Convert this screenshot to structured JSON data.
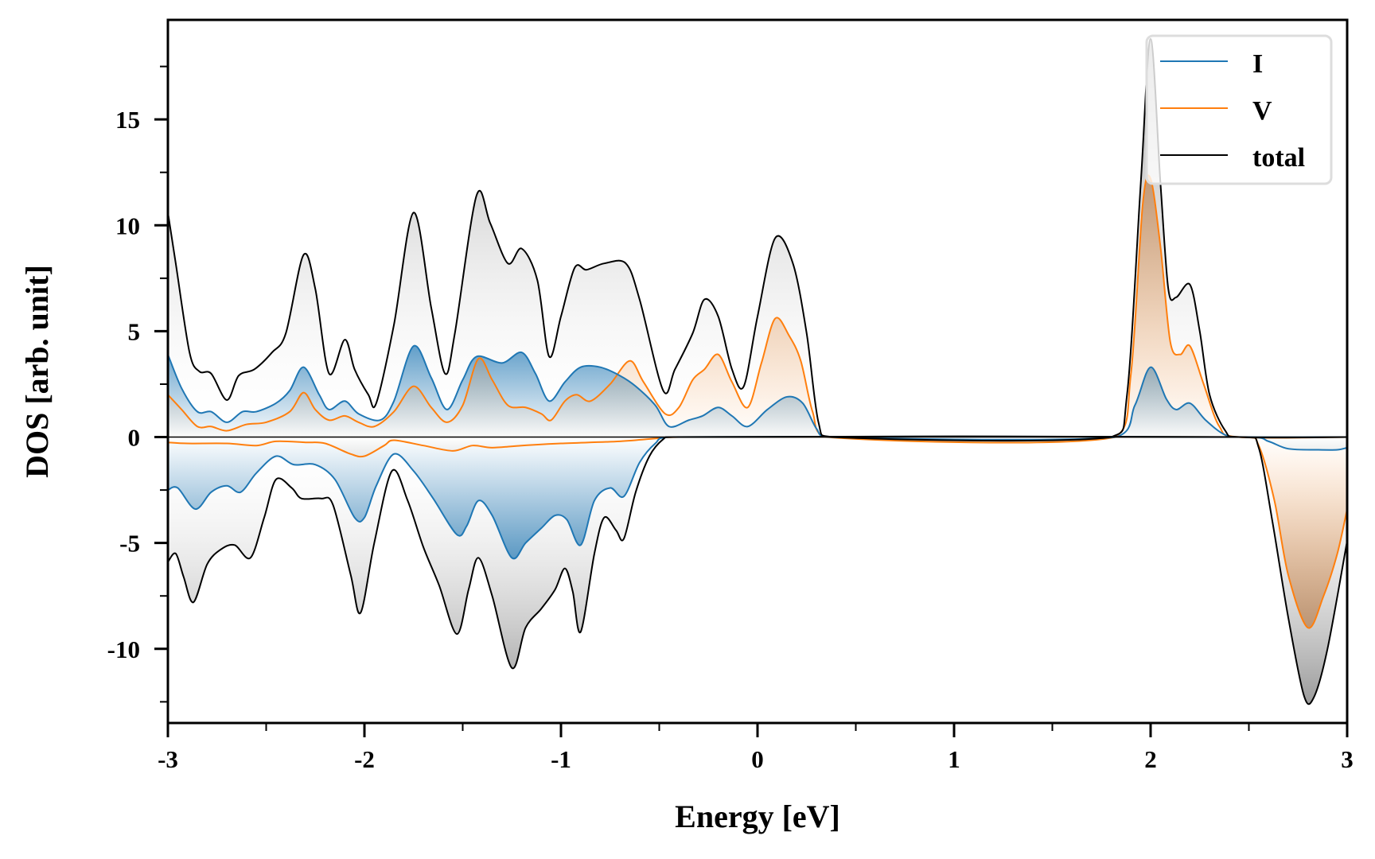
{
  "chart_data": {
    "type": "area",
    "title": "",
    "xlabel": "Energy [eV]",
    "ylabel": "DOS [arb. unit]",
    "xlim": [
      -3,
      3
    ],
    "ylim": [
      -13.5,
      19.7
    ],
    "xticks": [
      -3,
      -2,
      -1,
      0,
      1,
      2,
      3
    ],
    "xtick_labels": [
      "-3",
      "-2",
      "-1",
      "0",
      "1",
      "2",
      "3"
    ],
    "xminor": [
      -2.5,
      -1.5,
      -0.5,
      0.5,
      1.5,
      2.5
    ],
    "yticks": [
      -10,
      -5,
      0,
      5,
      10,
      15
    ],
    "ytick_labels": [
      "-10",
      "-5",
      "0",
      "5",
      "10",
      "15"
    ],
    "yminor": [
      -12.5,
      -7.5,
      -2.5,
      2.5,
      7.5,
      12.5,
      17.5
    ],
    "grid": false,
    "legend": {
      "placement": "top-right",
      "entries": [
        "I",
        "V",
        "total"
      ]
    },
    "colors": {
      "I": "#1f77b4",
      "V": "#ff7f0e",
      "total": "#000000",
      "total_fill": "#888888"
    },
    "series": [
      {
        "name": "total",
        "spin": "up",
        "points": [
          [
            -3.0,
            10.6
          ],
          [
            -2.96,
            8.2
          ],
          [
            -2.89,
            4.0
          ],
          [
            -2.84,
            3.1
          ],
          [
            -2.78,
            3.0
          ],
          [
            -2.7,
            1.75
          ],
          [
            -2.64,
            2.9
          ],
          [
            -2.56,
            3.2
          ],
          [
            -2.47,
            4.0
          ],
          [
            -2.4,
            4.9
          ],
          [
            -2.31,
            8.6
          ],
          [
            -2.25,
            7.0
          ],
          [
            -2.18,
            3.0
          ],
          [
            -2.1,
            4.6
          ],
          [
            -2.05,
            3.2
          ],
          [
            -1.98,
            2.0
          ],
          [
            -1.94,
            1.6
          ],
          [
            -1.85,
            5.3
          ],
          [
            -1.75,
            10.6
          ],
          [
            -1.66,
            6.1
          ],
          [
            -1.59,
            3.0
          ],
          [
            -1.54,
            4.9
          ],
          [
            -1.43,
            11.4
          ],
          [
            -1.36,
            10.1
          ],
          [
            -1.27,
            8.2
          ],
          [
            -1.2,
            8.9
          ],
          [
            -1.12,
            7.4
          ],
          [
            -1.06,
            3.8
          ],
          [
            -1.0,
            5.7
          ],
          [
            -0.93,
            8.0
          ],
          [
            -0.87,
            7.9
          ],
          [
            -0.78,
            8.2
          ],
          [
            -0.67,
            8.2
          ],
          [
            -0.6,
            6.5
          ],
          [
            -0.48,
            2.2
          ],
          [
            -0.42,
            3.2
          ],
          [
            -0.33,
            4.9
          ],
          [
            -0.27,
            6.5
          ],
          [
            -0.2,
            5.7
          ],
          [
            -0.13,
            3.2
          ],
          [
            -0.07,
            2.4
          ],
          [
            0.0,
            5.7
          ],
          [
            0.09,
            9.4
          ],
          [
            0.18,
            8.2
          ],
          [
            0.25,
            4.9
          ],
          [
            0.31,
            0.7
          ],
          [
            0.38,
            0.0
          ],
          [
            1.8,
            0.0
          ],
          [
            1.88,
            2.0
          ],
          [
            1.95,
            12.0
          ],
          [
            2.0,
            18.8
          ],
          [
            2.05,
            12.0
          ],
          [
            2.09,
            7.0
          ],
          [
            2.13,
            6.6
          ],
          [
            2.2,
            7.2
          ],
          [
            2.25,
            5.0
          ],
          [
            2.3,
            2.0
          ],
          [
            2.38,
            0.3
          ],
          [
            2.45,
            0.0
          ],
          [
            3.0,
            0.0
          ]
        ]
      },
      {
        "name": "total",
        "spin": "down",
        "points": [
          [
            -3.0,
            -5.9
          ],
          [
            -2.96,
            -5.5
          ],
          [
            -2.92,
            -6.6
          ],
          [
            -2.87,
            -7.8
          ],
          [
            -2.8,
            -6.0
          ],
          [
            -2.73,
            -5.3
          ],
          [
            -2.66,
            -5.1
          ],
          [
            -2.58,
            -5.7
          ],
          [
            -2.51,
            -3.8
          ],
          [
            -2.45,
            -2.0
          ],
          [
            -2.37,
            -2.4
          ],
          [
            -2.32,
            -2.9
          ],
          [
            -2.22,
            -2.9
          ],
          [
            -2.16,
            -3.2
          ],
          [
            -2.07,
            -6.5
          ],
          [
            -2.02,
            -8.3
          ],
          [
            -1.95,
            -5.0
          ],
          [
            -1.86,
            -1.6
          ],
          [
            -1.78,
            -3.0
          ],
          [
            -1.7,
            -5.2
          ],
          [
            -1.62,
            -7.0
          ],
          [
            -1.53,
            -9.3
          ],
          [
            -1.47,
            -7.2
          ],
          [
            -1.42,
            -5.7
          ],
          [
            -1.35,
            -7.5
          ],
          [
            -1.25,
            -10.9
          ],
          [
            -1.18,
            -9.0
          ],
          [
            -1.1,
            -8.1
          ],
          [
            -1.03,
            -7.2
          ],
          [
            -0.98,
            -6.2
          ],
          [
            -0.94,
            -7.3
          ],
          [
            -0.9,
            -9.2
          ],
          [
            -0.83,
            -5.5
          ],
          [
            -0.78,
            -3.8
          ],
          [
            -0.72,
            -4.4
          ],
          [
            -0.68,
            -4.8
          ],
          [
            -0.62,
            -2.6
          ],
          [
            -0.55,
            -0.9
          ],
          [
            -0.48,
            -0.1
          ],
          [
            -0.43,
            0.0
          ],
          [
            2.48,
            0.0
          ],
          [
            2.55,
            -0.5
          ],
          [
            2.62,
            -4.0
          ],
          [
            2.7,
            -8.5
          ],
          [
            2.78,
            -12.2
          ],
          [
            2.83,
            -12.3
          ],
          [
            2.9,
            -10.0
          ],
          [
            3.0,
            -4.9
          ]
        ]
      },
      {
        "name": "I",
        "spin": "up",
        "points": [
          [
            -3.0,
            3.9
          ],
          [
            -2.93,
            2.3
          ],
          [
            -2.85,
            1.2
          ],
          [
            -2.78,
            1.2
          ],
          [
            -2.7,
            0.7
          ],
          [
            -2.62,
            1.2
          ],
          [
            -2.55,
            1.2
          ],
          [
            -2.45,
            1.6
          ],
          [
            -2.38,
            2.2
          ],
          [
            -2.31,
            3.3
          ],
          [
            -2.23,
            2.0
          ],
          [
            -2.18,
            1.3
          ],
          [
            -2.1,
            1.7
          ],
          [
            -2.03,
            1.1
          ],
          [
            -1.92,
            0.8
          ],
          [
            -1.85,
            1.7
          ],
          [
            -1.75,
            4.3
          ],
          [
            -1.66,
            2.8
          ],
          [
            -1.58,
            1.3
          ],
          [
            -1.5,
            2.7
          ],
          [
            -1.43,
            3.8
          ],
          [
            -1.3,
            3.5
          ],
          [
            -1.2,
            4.0
          ],
          [
            -1.13,
            3.0
          ],
          [
            -1.06,
            1.7
          ],
          [
            -0.98,
            2.6
          ],
          [
            -0.9,
            3.3
          ],
          [
            -0.8,
            3.3
          ],
          [
            -0.7,
            2.9
          ],
          [
            -0.62,
            2.4
          ],
          [
            -0.52,
            1.5
          ],
          [
            -0.45,
            0.5
          ],
          [
            -0.35,
            0.8
          ],
          [
            -0.28,
            1.0
          ],
          [
            -0.2,
            1.4
          ],
          [
            -0.13,
            1.0
          ],
          [
            -0.05,
            0.5
          ],
          [
            0.05,
            1.3
          ],
          [
            0.15,
            1.9
          ],
          [
            0.23,
            1.6
          ],
          [
            0.3,
            0.4
          ],
          [
            0.36,
            0.0
          ],
          [
            1.82,
            0.0
          ],
          [
            1.92,
            1.5
          ],
          [
            2.0,
            3.3
          ],
          [
            2.08,
            1.8
          ],
          [
            2.13,
            1.3
          ],
          [
            2.2,
            1.6
          ],
          [
            2.28,
            0.8
          ],
          [
            2.38,
            0.1
          ],
          [
            2.48,
            0.0
          ],
          [
            3.0,
            0.0
          ]
        ]
      },
      {
        "name": "I",
        "spin": "down",
        "points": [
          [
            -3.0,
            -2.5
          ],
          [
            -2.95,
            -2.4
          ],
          [
            -2.86,
            -3.4
          ],
          [
            -2.78,
            -2.6
          ],
          [
            -2.7,
            -2.3
          ],
          [
            -2.63,
            -2.6
          ],
          [
            -2.55,
            -1.7
          ],
          [
            -2.45,
            -0.9
          ],
          [
            -2.36,
            -1.3
          ],
          [
            -2.25,
            -1.3
          ],
          [
            -2.15,
            -2.0
          ],
          [
            -2.05,
            -3.8
          ],
          [
            -2.0,
            -3.8
          ],
          [
            -1.94,
            -2.3
          ],
          [
            -1.85,
            -0.8
          ],
          [
            -1.75,
            -1.6
          ],
          [
            -1.65,
            -2.9
          ],
          [
            -1.53,
            -4.6
          ],
          [
            -1.48,
            -4.2
          ],
          [
            -1.42,
            -3.0
          ],
          [
            -1.35,
            -3.7
          ],
          [
            -1.25,
            -5.7
          ],
          [
            -1.18,
            -5.0
          ],
          [
            -1.1,
            -4.3
          ],
          [
            -1.03,
            -3.7
          ],
          [
            -0.97,
            -3.9
          ],
          [
            -0.9,
            -5.1
          ],
          [
            -0.83,
            -3.0
          ],
          [
            -0.75,
            -2.4
          ],
          [
            -0.68,
            -2.8
          ],
          [
            -0.6,
            -1.2
          ],
          [
            -0.52,
            -0.3
          ],
          [
            -0.45,
            0.0
          ],
          [
            2.5,
            0.0
          ],
          [
            2.6,
            -0.2
          ],
          [
            2.7,
            -0.55
          ],
          [
            2.85,
            -0.6
          ],
          [
            2.95,
            -0.6
          ],
          [
            3.0,
            -0.5
          ]
        ]
      },
      {
        "name": "V",
        "spin": "up",
        "points": [
          [
            -3.0,
            2.0
          ],
          [
            -2.93,
            1.3
          ],
          [
            -2.85,
            0.5
          ],
          [
            -2.78,
            0.5
          ],
          [
            -2.7,
            0.3
          ],
          [
            -2.6,
            0.6
          ],
          [
            -2.5,
            0.7
          ],
          [
            -2.38,
            1.2
          ],
          [
            -2.31,
            2.1
          ],
          [
            -2.25,
            1.3
          ],
          [
            -2.18,
            0.8
          ],
          [
            -2.1,
            1.0
          ],
          [
            -2.03,
            0.7
          ],
          [
            -1.95,
            0.5
          ],
          [
            -1.85,
            1.2
          ],
          [
            -1.75,
            2.4
          ],
          [
            -1.66,
            1.4
          ],
          [
            -1.58,
            0.7
          ],
          [
            -1.5,
            1.5
          ],
          [
            -1.42,
            3.7
          ],
          [
            -1.35,
            2.7
          ],
          [
            -1.27,
            1.5
          ],
          [
            -1.18,
            1.4
          ],
          [
            -1.1,
            1.1
          ],
          [
            -1.05,
            0.8
          ],
          [
            -0.98,
            1.7
          ],
          [
            -0.92,
            2.0
          ],
          [
            -0.85,
            1.7
          ],
          [
            -0.75,
            2.5
          ],
          [
            -0.65,
            3.6
          ],
          [
            -0.58,
            2.6
          ],
          [
            -0.47,
            1.1
          ],
          [
            -0.4,
            1.4
          ],
          [
            -0.33,
            2.7
          ],
          [
            -0.27,
            3.2
          ],
          [
            -0.2,
            3.9
          ],
          [
            -0.13,
            2.6
          ],
          [
            -0.05,
            1.4
          ],
          [
            0.02,
            3.5
          ],
          [
            0.09,
            5.6
          ],
          [
            0.16,
            4.8
          ],
          [
            0.22,
            3.6
          ],
          [
            0.28,
            1.2
          ],
          [
            0.35,
            0.0
          ],
          [
            1.82,
            0.0
          ],
          [
            1.9,
            3.0
          ],
          [
            1.96,
            11.0
          ],
          [
            2.0,
            12.2
          ],
          [
            2.05,
            9.0
          ],
          [
            2.1,
            4.5
          ],
          [
            2.15,
            3.9
          ],
          [
            2.2,
            4.3
          ],
          [
            2.27,
            2.5
          ],
          [
            2.35,
            0.5
          ],
          [
            2.45,
            0.0
          ],
          [
            3.0,
            0.0
          ]
        ]
      },
      {
        "name": "V",
        "spin": "down",
        "points": [
          [
            -3.0,
            -0.25
          ],
          [
            -2.9,
            -0.3
          ],
          [
            -2.7,
            -0.3
          ],
          [
            -2.55,
            -0.4
          ],
          [
            -2.45,
            -0.2
          ],
          [
            -2.3,
            -0.25
          ],
          [
            -2.2,
            -0.3
          ],
          [
            -2.07,
            -0.8
          ],
          [
            -2.0,
            -0.9
          ],
          [
            -1.9,
            -0.4
          ],
          [
            -1.85,
            -0.15
          ],
          [
            -1.7,
            -0.4
          ],
          [
            -1.55,
            -0.65
          ],
          [
            -1.45,
            -0.4
          ],
          [
            -1.35,
            -0.5
          ],
          [
            -1.2,
            -0.4
          ],
          [
            -1.0,
            -0.3
          ],
          [
            -0.7,
            -0.2
          ],
          [
            -0.5,
            -0.05
          ],
          [
            -0.4,
            0.0
          ],
          [
            2.48,
            0.0
          ],
          [
            2.55,
            -0.4
          ],
          [
            2.63,
            -3.0
          ],
          [
            2.7,
            -6.5
          ],
          [
            2.8,
            -9.0
          ],
          [
            2.88,
            -7.5
          ],
          [
            2.95,
            -5.5
          ],
          [
            3.0,
            -3.4
          ]
        ]
      }
    ]
  }
}
